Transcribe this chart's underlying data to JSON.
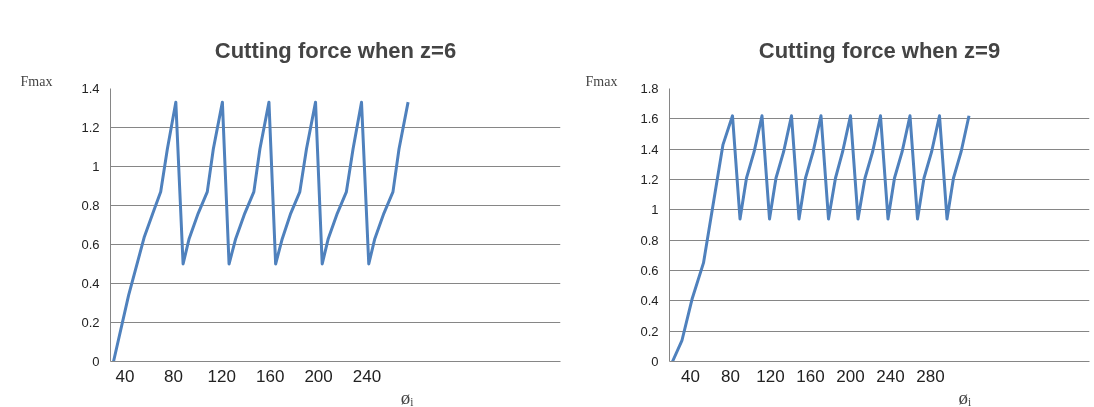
{
  "chart_data": [
    {
      "type": "line",
      "title": "Cutting force when z=6",
      "xlabel": "øᵢ",
      "ylabel": "Fmax",
      "x": [
        30.5,
        43,
        56,
        63,
        69.5,
        75,
        82,
        88,
        93,
        100.5,
        108,
        113,
        120.5,
        126,
        131.5,
        139,
        146.5,
        151.5,
        159,
        164.5,
        170,
        177,
        184.5,
        190,
        197.5,
        203,
        208,
        215.5,
        223,
        228.5,
        235.5,
        241.5,
        246.5,
        254,
        261.5,
        266.5,
        274
      ],
      "series": [
        {
          "color": "#4f81bd",
          "values": [
            0,
            0.34,
            0.64,
            0.76,
            0.87,
            1.09,
            1.33,
            0.5,
            0.63,
            0.76,
            0.87,
            1.09,
            1.33,
            0.5,
            0.63,
            0.76,
            0.87,
            1.09,
            1.33,
            0.5,
            0.63,
            0.76,
            0.87,
            1.09,
            1.33,
            0.5,
            0.63,
            0.76,
            0.87,
            1.09,
            1.33,
            0.5,
            0.63,
            0.76,
            0.87,
            1.09,
            1.33
          ]
        }
      ],
      "xlim": [
        28,
        400
      ],
      "xticks": [
        40,
        80,
        120,
        160,
        200,
        240
      ],
      "ylim": [
        0,
        1.4
      ],
      "yticks": [
        0,
        0.2,
        0.4,
        0.6,
        0.8,
        1,
        1.2,
        1.4
      ],
      "grid": "y",
      "line_style": "solid",
      "marker": "none"
    },
    {
      "type": "line",
      "title": "Cutting force when z=9",
      "xlabel": "øᵢ",
      "ylabel": "Fmax",
      "x": [
        22,
        31.5,
        41.5,
        53,
        62,
        72.5,
        82,
        89.5,
        96,
        103.5,
        111.5,
        119,
        125.5,
        133,
        141,
        148.5,
        155,
        162.5,
        170.5,
        178,
        185,
        192,
        200,
        207.5,
        214.5,
        222,
        230,
        237.5,
        244,
        251.5,
        259.5,
        267,
        273.5,
        281,
        289,
        296.5,
        303,
        310.5,
        318.5
      ],
      "series": [
        {
          "color": "#4f81bd",
          "values": [
            0,
            0.14,
            0.41,
            0.65,
            1.01,
            1.43,
            1.62,
            0.94,
            1.21,
            1.38,
            1.62,
            0.94,
            1.21,
            1.38,
            1.62,
            0.94,
            1.21,
            1.38,
            1.62,
            0.94,
            1.21,
            1.38,
            1.62,
            0.94,
            1.21,
            1.38,
            1.62,
            0.94,
            1.21,
            1.38,
            1.62,
            0.94,
            1.21,
            1.38,
            1.62,
            0.94,
            1.21,
            1.38,
            1.62
          ]
        }
      ],
      "xlim": [
        19,
        439
      ],
      "xticks": [
        40,
        80,
        120,
        160,
        200,
        240,
        280
      ],
      "ylim": [
        0,
        1.8
      ],
      "yticks": [
        0,
        0.2,
        0.4,
        0.6,
        0.8,
        1,
        1.2,
        1.4,
        1.6,
        1.8
      ],
      "grid": "y",
      "line_style": "solid",
      "marker": "none"
    }
  ]
}
